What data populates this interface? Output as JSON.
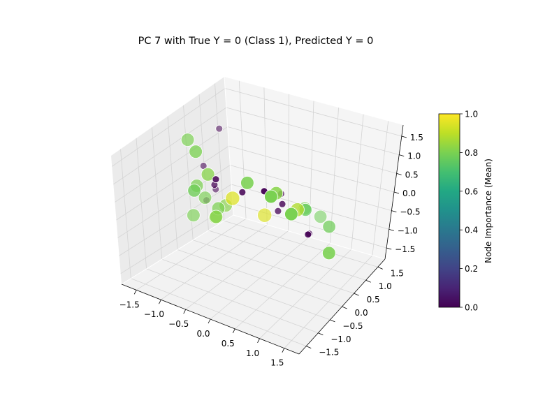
{
  "chart_data": {
    "type": "scatter",
    "projection": "3d",
    "title": "PC 7 with True Y = 0 (Class 1), Predicted Y = 0",
    "xlim": [
      -1.8,
      1.8
    ],
    "ylim": [
      -1.8,
      1.8
    ],
    "zlim": [
      -1.8,
      1.8
    ],
    "x_ticks": [
      -1.5,
      -1.0,
      -0.5,
      0.0,
      0.5,
      1.0,
      1.5
    ],
    "y_ticks": [
      -1.5,
      -1.0,
      -0.5,
      0.0,
      0.5,
      1.0,
      1.5
    ],
    "z_ticks": [
      -1.5,
      -1.0,
      -0.5,
      0.0,
      0.5,
      1.0,
      1.5
    ],
    "x_tick_labels": [
      "−1.5",
      "−1.0",
      "−0.5",
      "0.0",
      "0.5",
      "1.0",
      "1.5"
    ],
    "y_tick_labels": [
      "−1.5",
      "−1.0",
      "−0.5",
      "0.0",
      "0.5",
      "1.0",
      "1.5"
    ],
    "z_tick_labels": [
      "−1.5",
      "−1.0",
      "−0.5",
      "0.0",
      "0.5",
      "1.0",
      "1.5"
    ],
    "grid": true,
    "colormap": "viridis",
    "colorbar": {
      "label": "Node Importance (Mean)",
      "range": [
        0.0,
        1.0
      ],
      "ticks": [
        0.0,
        0.2,
        0.4,
        0.6,
        0.8,
        1.0
      ],
      "tick_labels": [
        "0.0",
        "0.2",
        "0.4",
        "0.6",
        "0.8",
        "1.0"
      ]
    },
    "points": [
      {
        "x": -1.3,
        "y": -0.2,
        "z": 1.5,
        "v": 0.8
      },
      {
        "x": -0.9,
        "y": -0.6,
        "z": 1.6,
        "v": 0.8
      },
      {
        "x": -0.8,
        "y": -0.4,
        "z": 0.9,
        "v": 0.82
      },
      {
        "x": -1.1,
        "y": -0.3,
        "z": 0.4,
        "v": 0.8
      },
      {
        "x": -0.9,
        "y": -0.7,
        "z": 0.6,
        "v": 0.78
      },
      {
        "x": -0.5,
        "y": -0.1,
        "z": 0.2,
        "v": 0.95
      },
      {
        "x": -0.6,
        "y": -0.5,
        "z": -0.1,
        "v": 0.82
      },
      {
        "x": -0.8,
        "y": -0.1,
        "z": -0.2,
        "v": 0.8
      },
      {
        "x": -1.2,
        "y": 0.1,
        "z": -0.2,
        "v": 0.8
      },
      {
        "x": -0.9,
        "y": 0.3,
        "z": -0.4,
        "v": 0.82
      },
      {
        "x": -1.4,
        "y": 0.0,
        "z": -0.7,
        "v": 0.8
      },
      {
        "x": -1.2,
        "y": 0.4,
        "z": -0.9,
        "v": 0.82
      },
      {
        "x": 0.1,
        "y": -0.6,
        "z": 1.2,
        "v": 0.8
      },
      {
        "x": 0.5,
        "y": -0.3,
        "z": 0.9,
        "v": 0.82
      },
      {
        "x": 0.9,
        "y": -1.2,
        "z": 1.6,
        "v": 0.8
      },
      {
        "x": 1.4,
        "y": -1.4,
        "z": 1.5,
        "v": 0.8
      },
      {
        "x": 0.6,
        "y": 0.3,
        "z": 0.1,
        "v": 0.88
      },
      {
        "x": 0.6,
        "y": 0.6,
        "z": -0.1,
        "v": 0.76
      },
      {
        "x": 0.3,
        "y": 1.1,
        "z": -0.5,
        "v": 0.8
      },
      {
        "x": 1.4,
        "y": 0.1,
        "z": -0.6,
        "v": 0.8
      },
      {
        "x": -0.2,
        "y": 0.5,
        "z": -0.5,
        "v": 0.95
      },
      {
        "x": 0.9,
        "y": 1.0,
        "z": -0.7,
        "v": 0.78
      },
      {
        "x": 0.3,
        "y": 1.7,
        "z": -1.1,
        "v": 0.78
      },
      {
        "x": -1.3,
        "y": 0.8,
        "z": 1.2,
        "v": 0.0
      },
      {
        "x": -0.4,
        "y": -0.8,
        "z": 1.2,
        "v": 0.0
      },
      {
        "x": 0.0,
        "y": -0.6,
        "z": 0.9,
        "v": 0.0
      },
      {
        "x": -0.8,
        "y": -0.2,
        "z": 0.5,
        "v": 0.0
      },
      {
        "x": -1.4,
        "y": 0.4,
        "z": 0.4,
        "v": 0.0
      },
      {
        "x": -1.3,
        "y": 0.6,
        "z": -0.3,
        "v": 0.0
      },
      {
        "x": -1.8,
        "y": 1.0,
        "z": -1.0,
        "v": 0.0
      },
      {
        "x": 0.2,
        "y": 0.4,
        "z": 0.3,
        "v": 0.0
      },
      {
        "x": 0.4,
        "y": 0.1,
        "z": 0.3,
        "v": 0.0
      },
      {
        "x": 0.2,
        "y": 0.3,
        "z": -0.1,
        "v": 0.0
      },
      {
        "x": 1.0,
        "y": 0.0,
        "z": -0.2,
        "v": 0.0
      },
      {
        "x": 0.7,
        "y": 0.6,
        "z": -0.7,
        "v": 0.0
      },
      {
        "x": 0.6,
        "y": -0.9,
        "z": 1.4,
        "v": 0.0
      }
    ]
  }
}
